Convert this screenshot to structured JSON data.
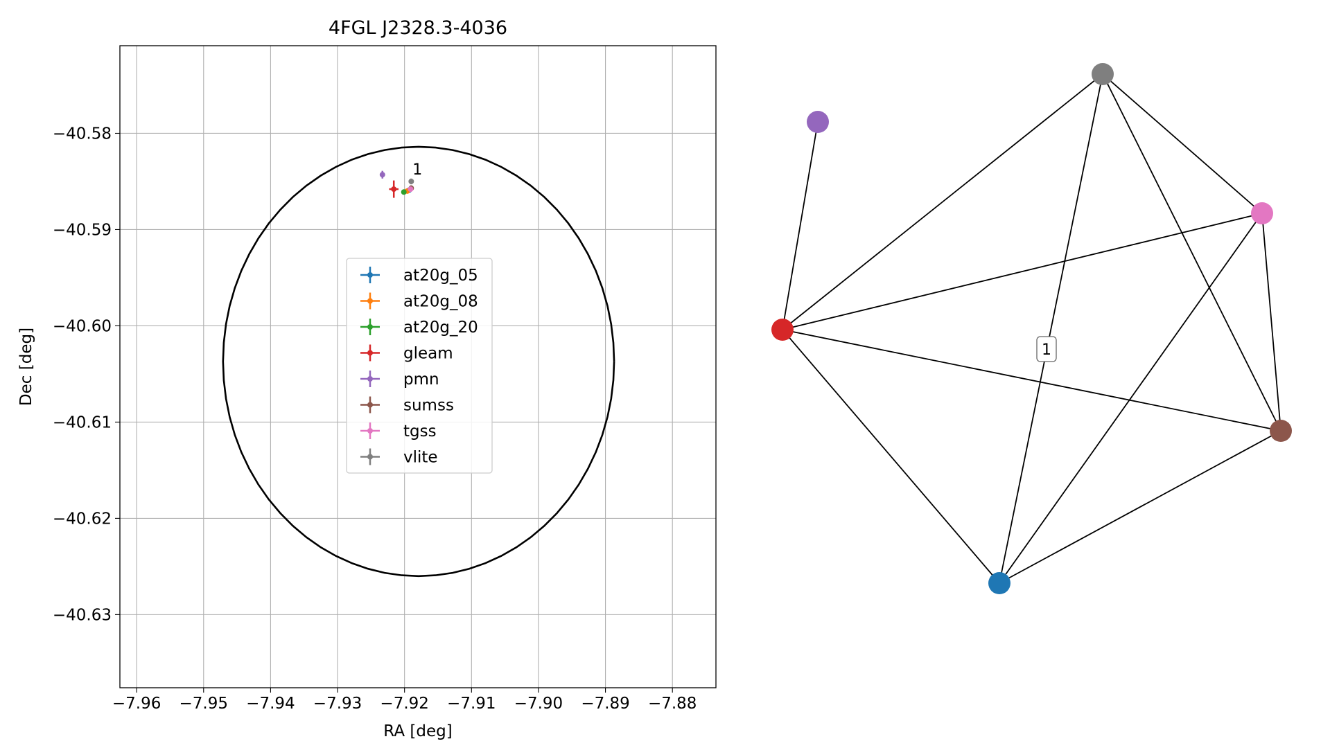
{
  "chart_data": [
    {
      "type": "scatter",
      "title": "4FGL J2328.3-4036",
      "xlabel": "RA [deg]",
      "ylabel": "Dec [deg]",
      "xlim": [
        -7.9625,
        -7.8735
      ],
      "ylim": [
        -40.6376,
        -40.5709
      ],
      "xticks": [
        -7.96,
        -7.95,
        -7.94,
        -7.93,
        -7.92,
        -7.91,
        -7.9,
        -7.89,
        -7.88
      ],
      "xtick_labels": [
        "−7.96",
        "−7.95",
        "−7.94",
        "−7.93",
        "−7.92",
        "−7.91",
        "−7.90",
        "−7.89",
        "−7.88"
      ],
      "yticks": [
        -40.58,
        -40.59,
        -40.6,
        -40.61,
        -40.62,
        -40.63
      ],
      "ytick_labels": [
        "−40.58",
        "−40.59",
        "−40.60",
        "−40.61",
        "−40.62",
        "−40.63"
      ],
      "grid": true,
      "legend_position": "center",
      "ellipse": {
        "center": [
          -7.9179,
          -40.6037
        ],
        "semi_axis_ra": 0.0292,
        "semi_axis_dec": 0.0223,
        "color": "#000000"
      },
      "annotations": [
        {
          "text": "1",
          "x": -7.9188,
          "y": -40.5843
        }
      ],
      "series": [
        {
          "name": "at20g_05",
          "color": "#1f77b4",
          "x": -7.9193,
          "y": -40.5859,
          "xerr": 0.0002,
          "yerr": 0.0002
        },
        {
          "name": "at20g_08",
          "color": "#ff7f0e",
          "x": -7.9196,
          "y": -40.586,
          "xerr": 0.0002,
          "yerr": 0.0002
        },
        {
          "name": "at20g_20",
          "color": "#2ca02c",
          "x": -7.9201,
          "y": -40.5861,
          "xerr": 0.0003,
          "yerr": 0.0002
        },
        {
          "name": "gleam",
          "color": "#d62728",
          "x": -7.9216,
          "y": -40.5858,
          "xerr": 0.0007,
          "yerr": 0.0009
        },
        {
          "name": "pmn",
          "color": "#9467bd",
          "x": -7.9233,
          "y": -40.5843,
          "xerr": 0.0003,
          "yerr": 0.0004
        },
        {
          "name": "sumss",
          "color": "#8c564b",
          "x": -7.919,
          "y": -40.5857,
          "xerr": 0.0003,
          "yerr": 0.0003
        },
        {
          "name": "tgss",
          "color": "#e377c2",
          "x": -7.9191,
          "y": -40.5858,
          "xerr": 0.0002,
          "yerr": 0.0002
        },
        {
          "name": "vlite",
          "color": "#7f7f7f",
          "x": -7.919,
          "y": -40.585,
          "xerr": 0.0002,
          "yerr": 0.0003
        }
      ]
    },
    {
      "type": "network",
      "nodes": [
        {
          "id": "vlite",
          "color": "#7f7f7f"
        },
        {
          "id": "pmn",
          "color": "#9467bd"
        },
        {
          "id": "tgss",
          "color": "#e377c2"
        },
        {
          "id": "gleam",
          "color": "#d62728"
        },
        {
          "id": "sumss",
          "color": "#8c564b"
        },
        {
          "id": "at20g",
          "color": "#1f77b4"
        }
      ],
      "edges": [
        [
          "pmn",
          "gleam"
        ],
        [
          "vlite",
          "gleam"
        ],
        [
          "vlite",
          "tgss"
        ],
        [
          "vlite",
          "sumss"
        ],
        [
          "vlite",
          "at20g"
        ],
        [
          "gleam",
          "tgss"
        ],
        [
          "gleam",
          "sumss"
        ],
        [
          "gleam",
          "at20g"
        ],
        [
          "tgss",
          "sumss"
        ],
        [
          "tgss",
          "at20g"
        ],
        [
          "sumss",
          "at20g"
        ]
      ],
      "annotations": [
        {
          "text": "1"
        }
      ]
    }
  ]
}
